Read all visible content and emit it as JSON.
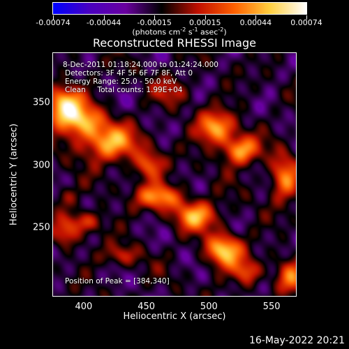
{
  "colorbar": {
    "ticks": [
      "-0.00074",
      "-0.00044",
      "-0.00015",
      "0.00015",
      "0.00044",
      "0.00074"
    ],
    "unit_pre": "(photons cm",
    "unit_exp1": "-2",
    "unit_mid": " s",
    "unit_exp2": "-1",
    "unit_mid2": " asec",
    "unit_exp3": "-2",
    "unit_post": ")",
    "colors": [
      "#0000ff",
      "#4a00c0",
      "#6a00a0",
      "#000000",
      "#c01000",
      "#ff6000",
      "#ffd040",
      "#ffffff"
    ]
  },
  "annotations": {
    "time": "8-Dec-2011 01:18:24.000 to 01:24:24.000",
    "detectors": "Detectors: 3F 4F 5F 6F 7F 8F, Att 0",
    "energy": "Energy Range: 25.0 - 50.0 keV",
    "clean": "Clean     Total counts: 1.99E+04",
    "peak": "Position of Peak = [384,340]"
  },
  "footer": "16-May-2022 20:21",
  "chart_data": {
    "type": "heatmap",
    "title": "Reconstructed RHESSI Image",
    "xlabel": "Heliocentric X (arcsec)",
    "ylabel": "Heliocentric Y (arcsec)",
    "xlim": [
      375,
      570
    ],
    "ylim": [
      195,
      390
    ],
    "xticks": [
      "400",
      "450",
      "500",
      "550"
    ],
    "yticks": [
      "250",
      "300",
      "350"
    ],
    "clim": [
      -0.00074,
      0.00074
    ],
    "peak": [
      384,
      340
    ],
    "sources": [
      {
        "x": 384,
        "y": 348,
        "amp": 1.0,
        "sx": 10,
        "sy": 10
      },
      {
        "x": 420,
        "y": 318,
        "amp": 0.85,
        "sx": 16,
        "sy": 10
      },
      {
        "x": 398,
        "y": 335,
        "amp": 0.8,
        "sx": 12,
        "sy": 9
      },
      {
        "x": 452,
        "y": 300,
        "amp": 0.6,
        "sx": 8,
        "sy": 8
      },
      {
        "x": 505,
        "y": 330,
        "amp": 0.85,
        "sx": 10,
        "sy": 9
      },
      {
        "x": 525,
        "y": 312,
        "amp": 0.85,
        "sx": 10,
        "sy": 8
      },
      {
        "x": 470,
        "y": 360,
        "amp": 0.35,
        "sx": 10,
        "sy": 8
      },
      {
        "x": 460,
        "y": 275,
        "amp": 0.75,
        "sx": 13,
        "sy": 7
      },
      {
        "x": 490,
        "y": 260,
        "amp": 0.8,
        "sx": 12,
        "sy": 8
      },
      {
        "x": 512,
        "y": 232,
        "amp": 0.95,
        "sx": 10,
        "sy": 9
      },
      {
        "x": 530,
        "y": 215,
        "amp": 0.55,
        "sx": 8,
        "sy": 7
      },
      {
        "x": 560,
        "y": 290,
        "amp": 0.75,
        "sx": 8,
        "sy": 12
      },
      {
        "x": 565,
        "y": 210,
        "amp": 0.6,
        "sx": 8,
        "sy": 10
      },
      {
        "x": 400,
        "y": 255,
        "amp": 0.5,
        "sx": 10,
        "sy": 6
      },
      {
        "x": 385,
        "y": 245,
        "amp": 0.45,
        "sx": 7,
        "sy": 7
      },
      {
        "x": 430,
        "y": 228,
        "amp": 0.4,
        "sx": 10,
        "sy": 6
      },
      {
        "x": 385,
        "y": 275,
        "amp": 0.3,
        "sx": 6,
        "sy": 6
      }
    ]
  }
}
